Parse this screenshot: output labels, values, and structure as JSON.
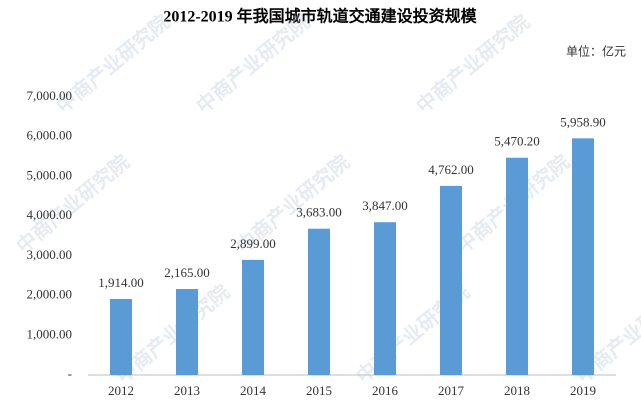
{
  "chart_data": {
    "type": "bar",
    "title": "2012-2019 年我国城市轨道交通建设投资规模",
    "unit": "单位：亿元",
    "watermark": "中商产业研究院",
    "categories": [
      "2012",
      "2013",
      "2014",
      "2015",
      "2016",
      "2017",
      "2018",
      "2019"
    ],
    "values": [
      1914,
      2165,
      2899,
      3683,
      3847,
      4762,
      5470.2,
      5958.9
    ],
    "value_labels": [
      "1,914.00",
      "2,165.00",
      "2,899.00",
      "3,683.00",
      "3,847.00",
      "4,762.00",
      "5,470.20",
      "5,958.90"
    ],
    "color": "#5b9bd5",
    "ylim": [
      0,
      7000
    ],
    "yticks": [
      {
        "value": 0,
        "label": "-"
      },
      {
        "value": 1000,
        "label": "1,000.00"
      },
      {
        "value": 2000,
        "label": "2,000.00"
      },
      {
        "value": 3000,
        "label": "3,000.00"
      },
      {
        "value": 4000,
        "label": "4,000.00"
      },
      {
        "value": 5000,
        "label": "5,000.00"
      },
      {
        "value": 6000,
        "label": "6,000.00"
      },
      {
        "value": 7000,
        "label": "7,000.00"
      }
    ],
    "grid": false
  }
}
